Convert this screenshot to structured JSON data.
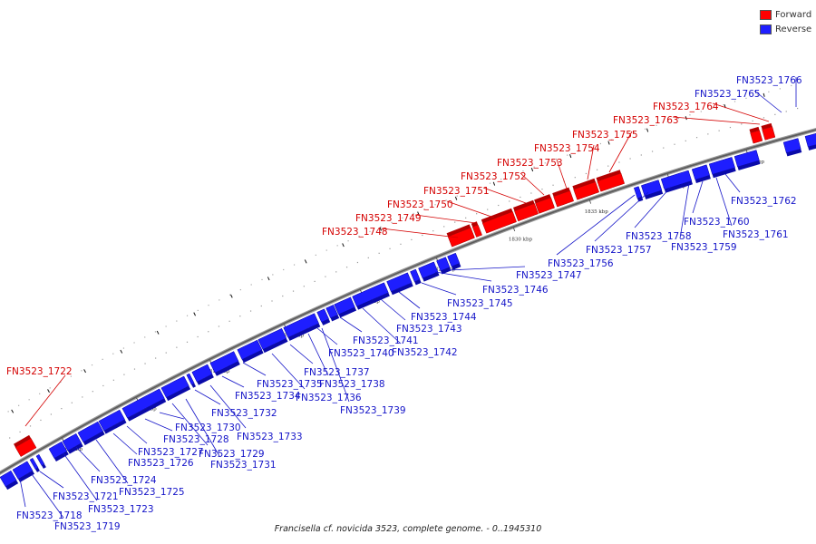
{
  "legend": {
    "forward_label": "Forward",
    "reverse_label": "Reverse",
    "forward_color": "#ff0000",
    "reverse_color": "#1e1eff"
  },
  "caption": "Francisella cf. novicida 3523, complete genome. - 0..1945310",
  "scale": {
    "tick_labels": [
      "1800 kbp",
      "1805 kbp",
      "1810 kbp",
      "1815 kbp",
      "1820 kbp",
      "1825 kbp",
      "1830 kbp",
      "1835 kbp",
      "1840 kbp",
      "1845 kbp"
    ]
  },
  "genes": {
    "forward": [
      "FN3523_1722",
      "FN3523_1748",
      "FN3523_1749",
      "FN3523_1750",
      "FN3523_1751",
      "FN3523_1752",
      "FN3523_1753",
      "FN3523_1754",
      "FN3523_1755",
      "FN3523_1763",
      "FN3523_1764"
    ],
    "reverse": [
      "FN3523_1718",
      "FN3523_1719",
      "FN3523_1721",
      "FN3523_1723",
      "FN3523_1724",
      "FN3523_1725",
      "FN3523_1726",
      "FN3523_1727",
      "FN3523_1728",
      "FN3523_1729",
      "FN3523_1730",
      "FN3523_1731",
      "FN3523_1732",
      "FN3523_1733",
      "FN3523_1734",
      "FN3523_1735",
      "FN3523_1736",
      "FN3523_1737",
      "FN3523_1738",
      "FN3523_1739",
      "FN3523_1740",
      "FN3523_1741",
      "FN3523_1742",
      "FN3523_1743",
      "FN3523_1744",
      "FN3523_1745",
      "FN3523_1746",
      "FN3523_1747",
      "FN3523_1756",
      "FN3523_1757",
      "FN3523_1758",
      "FN3523_1759",
      "FN3523_1760",
      "FN3523_1761",
      "FN3523_1762",
      "FN3523_1765",
      "FN3523_1766"
    ]
  }
}
